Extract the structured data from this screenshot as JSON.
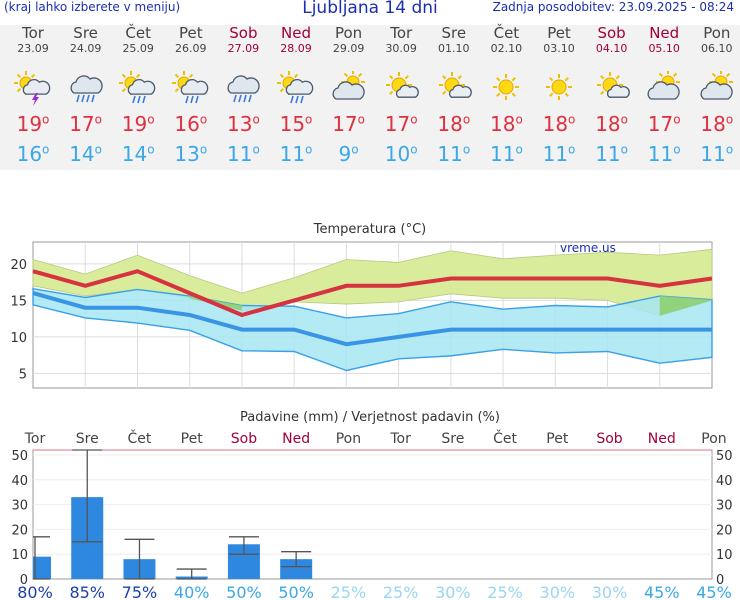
{
  "header": {
    "left": "(kraj lahko izberete v meniju)",
    "title": "Ljubljana 14 dni",
    "right": "Zadnja posodobitev: 23.09.2025 - 08:24"
  },
  "days": [
    {
      "name": "Tor",
      "date": "23.09",
      "weekend": false,
      "icon": "sun-cloud-storm-icon",
      "max": "19",
      "min": "16"
    },
    {
      "name": "Sre",
      "date": "24.09",
      "weekend": false,
      "icon": "cloud-heavy-rain-icon",
      "max": "17",
      "min": "14"
    },
    {
      "name": "Čet",
      "date": "25.09",
      "weekend": false,
      "icon": "sun-cloud-rain-icon",
      "max": "19",
      "min": "14"
    },
    {
      "name": "Pet",
      "date": "26.09",
      "weekend": false,
      "icon": "sun-cloud-rain-icon",
      "max": "16",
      "min": "13"
    },
    {
      "name": "Sob",
      "date": "27.09",
      "weekend": true,
      "icon": "cloud-heavy-rain-icon",
      "max": "13",
      "min": "11"
    },
    {
      "name": "Ned",
      "date": "28.09",
      "weekend": true,
      "icon": "sun-cloud-rain-icon",
      "max": "15",
      "min": "11"
    },
    {
      "name": "Pon",
      "date": "29.09",
      "weekend": false,
      "icon": "sun-cloud-icon",
      "max": "17",
      "min": "9"
    },
    {
      "name": "Tor",
      "date": "30.09",
      "weekend": false,
      "icon": "sun-small-cloud-icon",
      "max": "17",
      "min": "10"
    },
    {
      "name": "Sre",
      "date": "01.10",
      "weekend": false,
      "icon": "sun-small-cloud-icon",
      "max": "18",
      "min": "11"
    },
    {
      "name": "Čet",
      "date": "02.10",
      "weekend": false,
      "icon": "sun-icon",
      "max": "18",
      "min": "11"
    },
    {
      "name": "Pet",
      "date": "03.10",
      "weekend": false,
      "icon": "sun-icon",
      "max": "18",
      "min": "11"
    },
    {
      "name": "Sob",
      "date": "04.10",
      "weekend": true,
      "icon": "sun-small-cloud-icon",
      "max": "18",
      "min": "11"
    },
    {
      "name": "Ned",
      "date": "05.10",
      "weekend": true,
      "icon": "sun-cloud-icon",
      "max": "17",
      "min": "11"
    },
    {
      "name": "Pon",
      "date": "06.10",
      "weekend": false,
      "icon": "sun-cloud-icon",
      "max": "18",
      "min": "11"
    }
  ],
  "degree_symbol": "o",
  "colors": {
    "max_temp": "#e03040",
    "min_temp": "#3aa8e8",
    "weekend": "#a0003c",
    "rain_bar": "#2f88e0",
    "max_band": "#d9ec9c",
    "min_band": "#a6e6f2",
    "overlap_band": "#8ecf70"
  },
  "chart_data": [
    {
      "type": "line",
      "title": "Temperatura (°C)",
      "watermark": "vreme.us",
      "x": [
        "Tor",
        "Sre",
        "Čet",
        "Pet",
        "Sob",
        "Ned",
        "Pon",
        "Tor",
        "Sre",
        "Čet",
        "Pet",
        "Sob",
        "Ned",
        "Pon"
      ],
      "ylim": [
        3,
        23
      ],
      "yticks": [
        5,
        10,
        15,
        20
      ],
      "grid": true,
      "series": [
        {
          "values": [
            19,
            17,
            19,
            16,
            13,
            15,
            17,
            17,
            18,
            18,
            18,
            18,
            17,
            18
          ],
          "band_high": [
            20.6,
            18.6,
            21.2,
            18.4,
            16.0,
            18.1,
            20.6,
            20.2,
            21.8,
            20.7,
            21.2,
            21.6,
            21.2,
            22.0
          ],
          "band_low": [
            17.0,
            15.6,
            16.5,
            15.3,
            13.6,
            14.8,
            14.5,
            14.8,
            15.9,
            15.3,
            15.3,
            15.0,
            12.9,
            15.0
          ],
          "color": "#d6323f"
        },
        {
          "values": [
            16,
            14,
            14,
            13,
            11,
            11,
            9,
            10,
            11,
            11,
            11,
            11,
            11,
            11
          ],
          "band_high": [
            16.6,
            15.4,
            16.5,
            15.6,
            14.3,
            14.2,
            12.6,
            13.2,
            14.8,
            13.8,
            14.3,
            14.1,
            15.6,
            15.1
          ],
          "band_low": [
            14.4,
            12.6,
            11.9,
            10.9,
            8.1,
            8.0,
            5.4,
            7.0,
            7.4,
            8.3,
            7.8,
            8.0,
            6.4,
            7.2
          ],
          "color": "#3a94e6"
        }
      ]
    },
    {
      "type": "bar",
      "title": "Padavine (mm) / Verjetnost padavin (%)",
      "categories": [
        "Tor",
        "Sre",
        "Čet",
        "Pet",
        "Sob",
        "Ned",
        "Pon",
        "Tor",
        "Sre",
        "Čet",
        "Pet",
        "Sob",
        "Ned",
        "Pon"
      ],
      "values": [
        9,
        33,
        8,
        1,
        14,
        8,
        0,
        0,
        0,
        0,
        0,
        0,
        0,
        0
      ],
      "error_low": [
        0,
        15,
        0,
        0,
        10,
        5,
        0,
        0,
        0,
        0,
        0,
        0,
        0,
        0
      ],
      "error_high": [
        17,
        52,
        16,
        4,
        17,
        11,
        0,
        0,
        0,
        0,
        0,
        0,
        0,
        0
      ],
      "probability": [
        "80%",
        "85%",
        "75%",
        "40%",
        "50%",
        "50%",
        "25%",
        "25%",
        "30%",
        "25%",
        "30%",
        "30%",
        "45%",
        "45%"
      ],
      "ylim": [
        0,
        52
      ],
      "yticks": [
        0,
        10,
        20,
        30,
        40,
        50
      ]
    }
  ]
}
